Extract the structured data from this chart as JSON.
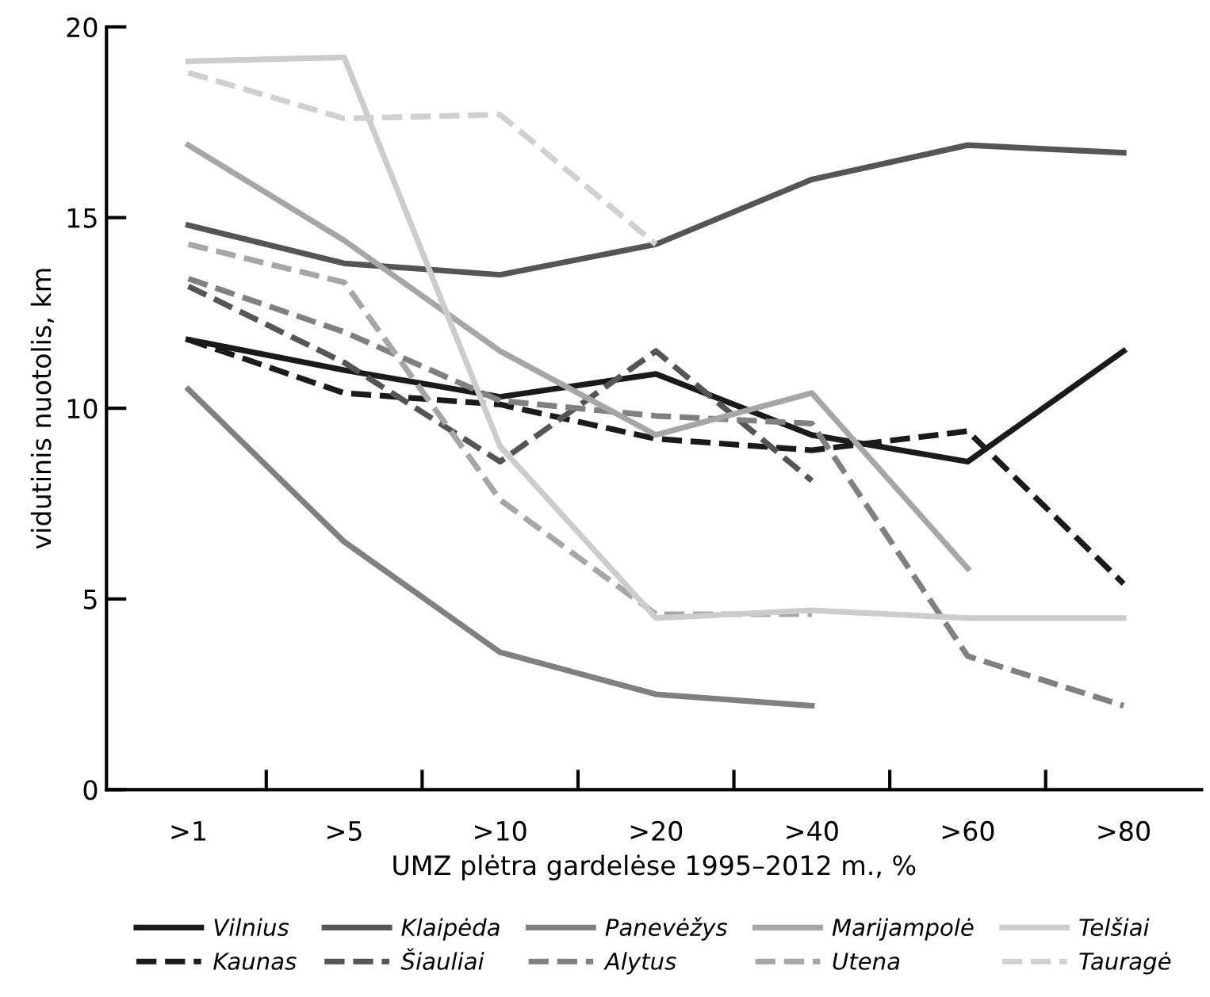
{
  "chart_data": {
    "type": "line",
    "xlabel": "UMZ plėtra gardelėse 1995–2012 m., %",
    "ylabel": "vidutinis nuotolis, km",
    "categories": [
      ">1",
      ">5",
      ">10",
      ">20",
      ">40",
      ">60",
      ">80"
    ],
    "ylim": [
      0,
      20
    ],
    "yticks": [
      0,
      5,
      10,
      15,
      20
    ],
    "grid": false,
    "legend": "bottom",
    "marker": "none",
    "series": [
      {
        "name": "Vilnius",
        "color": "#1a1a1a",
        "line_style": "solid",
        "values": [
          11.8,
          11.0,
          10.3,
          10.9,
          9.3,
          8.6,
          11.5
        ]
      },
      {
        "name": "Kaunas",
        "color": "#1a1a1a",
        "line_style": "dashed",
        "values": [
          11.8,
          10.4,
          10.1,
          9.2,
          8.9,
          9.4,
          5.4
        ]
      },
      {
        "name": "Klaipėda",
        "color": "#555555",
        "line_style": "solid",
        "values": [
          14.8,
          13.8,
          13.5,
          14.3,
          16.0,
          16.9,
          16.7
        ]
      },
      {
        "name": "Šiauliai",
        "color": "#555555",
        "line_style": "dashed",
        "values": [
          13.2,
          11.2,
          8.6,
          11.5,
          8.1,
          null,
          null
        ]
      },
      {
        "name": "Panevėžys",
        "color": "#808080",
        "line_style": "solid",
        "values": [
          10.5,
          6.5,
          3.6,
          2.5,
          2.2,
          null,
          null
        ]
      },
      {
        "name": "Alytus",
        "color": "#808080",
        "line_style": "dashed",
        "values": [
          13.4,
          12.0,
          10.2,
          9.8,
          9.6,
          3.5,
          2.2
        ]
      },
      {
        "name": "Marijampolė",
        "color": "#a6a6a6",
        "line_style": "solid",
        "values": [
          16.9,
          14.4,
          11.5,
          9.3,
          10.4,
          5.8,
          null
        ]
      },
      {
        "name": "Utena",
        "color": "#a6a6a6",
        "line_style": "dashed",
        "values": [
          14.3,
          13.3,
          7.6,
          4.6,
          4.6,
          null,
          null
        ]
      },
      {
        "name": "Telšiai",
        "color": "#cccccc",
        "line_style": "solid",
        "values": [
          19.1,
          19.2,
          9.0,
          4.5,
          4.7,
          4.5,
          4.5
        ]
      },
      {
        "name": "Tauragė",
        "color": "#d0d0d0",
        "line_style": "dashed",
        "values": [
          18.8,
          17.6,
          17.7,
          14.3,
          null,
          null,
          null
        ]
      }
    ]
  }
}
